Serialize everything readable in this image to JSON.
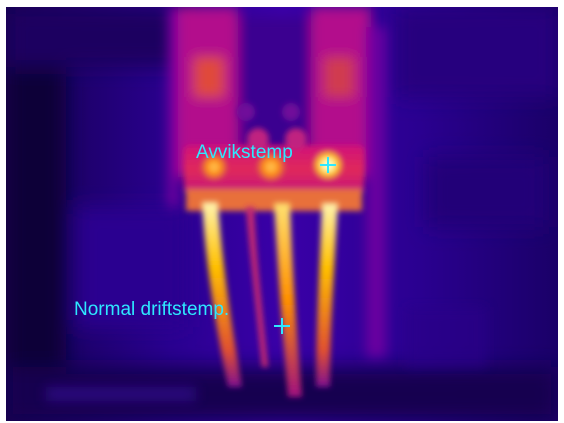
{
  "thermal_image": {
    "palette": "iron",
    "palette_colors": [
      "#1a0070",
      "#4a00a0",
      "#a000a0",
      "#e02060",
      "#ff7a00",
      "#ffd800",
      "#fffbe0"
    ],
    "markers": [
      {
        "label": "Avvikstemp",
        "icon": "crosshair-icon"
      },
      {
        "label": "Normal driftstemp.",
        "icon": "crosshair-icon"
      }
    ]
  }
}
